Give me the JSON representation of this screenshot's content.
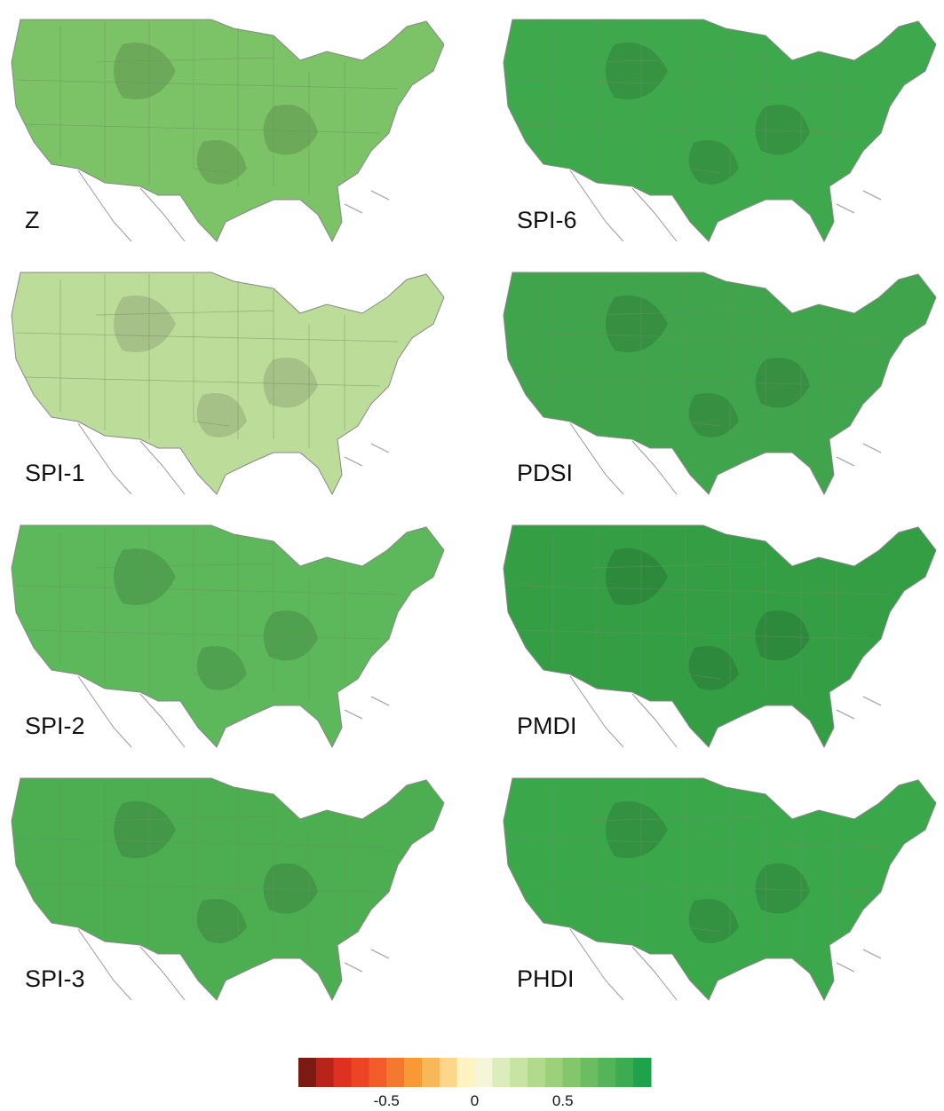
{
  "panels": [
    {
      "label": "Z",
      "color": "#7cc266"
    },
    {
      "label": "SPI-6",
      "color": "#3ea84c"
    },
    {
      "label": "SPI-1",
      "color": "#bcdc9a"
    },
    {
      "label": "PDSI",
      "color": "#3fa44b"
    },
    {
      "label": "SPI-2",
      "color": "#5cb85a"
    },
    {
      "label": "PMDI",
      "color": "#349e45"
    },
    {
      "label": "SPI-3",
      "color": "#4cae50"
    },
    {
      "label": "PHDI",
      "color": "#3aa74a"
    }
  ],
  "colorbar": {
    "lim": [
      -1,
      1
    ],
    "ticks": [
      -0.5,
      0,
      0.5
    ],
    "colors": [
      "#7a1a10",
      "#b8231a",
      "#e0301f",
      "#ee4426",
      "#f25c2a",
      "#f4792f",
      "#f79a36",
      "#f9b857",
      "#fcd68a",
      "#fff3c4",
      "#f3f6d8",
      "#dcedbc",
      "#c8e4a4",
      "#b2da8c",
      "#9cd07a",
      "#84c66c",
      "#6cbd62",
      "#54b458",
      "#3cab52",
      "#1fa24c"
    ]
  }
}
